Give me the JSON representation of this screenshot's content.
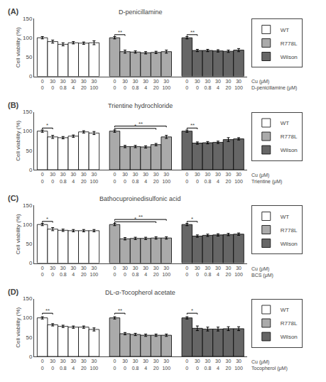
{
  "chart_data": [
    {
      "type": "bar",
      "panel_label": "(A)",
      "title": "D-penicillamine",
      "ylabel": "Cell viability (%)",
      "xlabel": [
        "Cu (μM)",
        "D-penicillamine (μM)"
      ],
      "categories": [
        [
          "0",
          "0"
        ],
        [
          "30",
          "0"
        ],
        [
          "30",
          "0.8"
        ],
        [
          "30",
          "4"
        ],
        [
          "30",
          "20"
        ],
        [
          "30",
          "100"
        ]
      ],
      "series": [
        {
          "name": "WT",
          "color": "white",
          "values": [
            100,
            90,
            83,
            87,
            86,
            87
          ],
          "errors": [
            3,
            4,
            4,
            3,
            3,
            5
          ]
        },
        {
          "name": "R778L",
          "color": "#aaaaaa",
          "values": [
            100,
            64,
            63,
            61,
            62,
            64
          ],
          "errors": [
            3,
            4,
            3,
            3,
            3,
            4
          ]
        },
        {
          "name": "Wilson",
          "color": "#666666",
          "values": [
            100,
            67,
            67,
            66,
            65,
            68
          ],
          "errors": [
            3,
            3,
            3,
            3,
            3,
            4
          ]
        }
      ],
      "edge_color": "black",
      "annotations": [
        {
          "series": "R778L",
          "from": 0,
          "to": 1,
          "y": 108,
          "text": "**"
        },
        {
          "series": "Wilson",
          "from": 0,
          "to": 1,
          "y": 108,
          "text": "**"
        }
      ],
      "ylim": [
        0,
        150
      ],
      "yticks": [
        0,
        50,
        100,
        150
      ],
      "grid": false,
      "legend": "right"
    },
    {
      "type": "bar",
      "panel_label": "(B)",
      "title": "Trientine hydrochloride",
      "ylabel": "Cell viability (%)",
      "xlabel": [
        "Cu (μM)",
        "Trientine (μM)"
      ],
      "categories": [
        [
          "0",
          "0"
        ],
        [
          "30",
          "0"
        ],
        [
          "30",
          "0.8"
        ],
        [
          "30",
          "4"
        ],
        [
          "30",
          "20"
        ],
        [
          "30",
          "100"
        ]
      ],
      "series": [
        {
          "name": "WT",
          "color": "white",
          "values": [
            100,
            85,
            83,
            87,
            98,
            95
          ],
          "errors": [
            3,
            4,
            3,
            3,
            3,
            4
          ]
        },
        {
          "name": "R778L",
          "color": "#aaaaaa",
          "values": [
            100,
            60,
            60,
            59,
            65,
            85
          ],
          "errors": [
            3,
            3,
            3,
            3,
            3,
            4
          ]
        },
        {
          "name": "Wilson",
          "color": "#666666",
          "values": [
            100,
            69,
            70,
            71,
            78,
            80
          ],
          "errors": [
            3,
            3,
            3,
            3,
            5,
            3
          ]
        }
      ],
      "edge_color": "black",
      "annotations": [
        {
          "series": "WT",
          "from": 0,
          "to": 1,
          "y": 108,
          "text": "*"
        },
        {
          "series": "R778L",
          "from": 0,
          "to": 5,
          "y": 113,
          "text": "**"
        },
        {
          "series": "R778L",
          "from": 0,
          "to": 4,
          "y": 107,
          "text": "*"
        },
        {
          "series": "Wilson",
          "from": 0,
          "to": 1,
          "y": 108,
          "text": "**"
        }
      ],
      "ylim": [
        0,
        150
      ],
      "yticks": [
        0,
        50,
        100,
        150
      ],
      "grid": false,
      "legend": "right"
    },
    {
      "type": "bar",
      "panel_label": "(C)",
      "title": "Bathocuproinedisulfonic acid",
      "ylabel": "Cell viability (%)",
      "xlabel": [
        "Cu (μM)",
        "BCS (μM)"
      ],
      "categories": [
        [
          "0",
          "0"
        ],
        [
          "30",
          "0"
        ],
        [
          "30",
          "0.8"
        ],
        [
          "30",
          "4"
        ],
        [
          "30",
          "20"
        ],
        [
          "30",
          "100"
        ]
      ],
      "series": [
        {
          "name": "WT",
          "color": "white",
          "values": [
            100,
            88,
            85,
            84,
            84,
            84
          ],
          "errors": [
            3,
            4,
            3,
            3,
            3,
            3
          ]
        },
        {
          "name": "R778L",
          "color": "#aaaaaa",
          "values": [
            100,
            63,
            64,
            64,
            65,
            65
          ],
          "errors": [
            3,
            3,
            3,
            3,
            3,
            3
          ]
        },
        {
          "name": "Wilson",
          "color": "#666666",
          "values": [
            100,
            70,
            72,
            73,
            74,
            75
          ],
          "errors": [
            3,
            3,
            3,
            3,
            3,
            3
          ]
        }
      ],
      "edge_color": "black",
      "annotations": [
        {
          "series": "WT",
          "from": 0,
          "to": 1,
          "y": 108,
          "text": "*"
        },
        {
          "series": "R778L",
          "from": 0,
          "to": 5,
          "y": 113,
          "text": "**"
        },
        {
          "series": "R778L",
          "from": 0,
          "to": 4,
          "y": 107,
          "text": "*"
        },
        {
          "series": "Wilson",
          "from": 0,
          "to": 1,
          "y": 108,
          "text": "*"
        }
      ],
      "ylim": [
        0,
        150
      ],
      "yticks": [
        0,
        50,
        100,
        150
      ],
      "grid": false,
      "legend": "right"
    },
    {
      "type": "bar",
      "panel_label": "(D)",
      "title": "DL-α-Tocopherol acetate",
      "ylabel": "Cell viability (%)",
      "xlabel": [
        "Cu (μM)",
        "Tocopherol (μM)"
      ],
      "categories": [
        [
          "0",
          "0"
        ],
        [
          "30",
          "0"
        ],
        [
          "30",
          "0.8"
        ],
        [
          "30",
          "4"
        ],
        [
          "30",
          "20"
        ],
        [
          "30",
          "100"
        ]
      ],
      "series": [
        {
          "name": "WT",
          "color": "white",
          "values": [
            100,
            82,
            78,
            76,
            76,
            70
          ],
          "errors": [
            3,
            3,
            3,
            3,
            3,
            4
          ]
        },
        {
          "name": "R778L",
          "color": "#aaaaaa",
          "values": [
            100,
            59,
            57,
            55,
            55,
            55
          ],
          "errors": [
            3,
            3,
            3,
            3,
            3,
            3
          ]
        },
        {
          "name": "Wilson",
          "color": "#666666",
          "values": [
            100,
            73,
            71,
            71,
            72,
            72
          ],
          "errors": [
            3,
            6,
            5,
            5,
            5,
            5
          ]
        }
      ],
      "edge_color": "black",
      "annotations": [
        {
          "series": "WT",
          "from": 0,
          "to": 1,
          "y": 112,
          "text": "**"
        },
        {
          "series": "R778L",
          "from": 0,
          "to": 1,
          "y": 112,
          "text": "**"
        },
        {
          "series": "Wilson",
          "from": 0,
          "to": 1,
          "y": 112,
          "text": "*"
        }
      ],
      "ylim": [
        0,
        150
      ],
      "yticks": [
        0,
        50,
        100,
        150
      ],
      "grid": false,
      "legend": "right"
    }
  ]
}
